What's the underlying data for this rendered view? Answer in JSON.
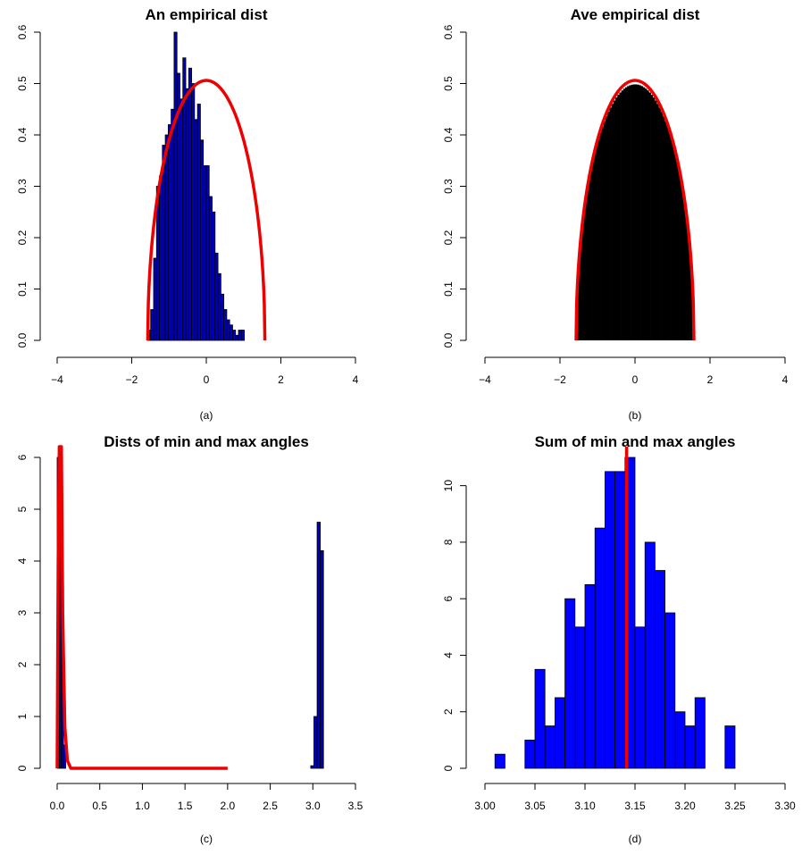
{
  "chart_data": [
    {
      "type": "bar",
      "title": "An empirical dist",
      "caption": "(a)",
      "xlabel": "",
      "ylabel": "",
      "xlim": [
        -4,
        4
      ],
      "ylim": [
        0,
        0.6
      ],
      "x_ticks": [
        -4,
        -2,
        0,
        2,
        4
      ],
      "y_ticks": [
        0.0,
        0.1,
        0.2,
        0.3,
        0.4,
        0.5,
        0.6
      ],
      "bar_color": "#0000b8",
      "bins": {
        "start": -1.571,
        "width": 0.0785,
        "values": [
          0.02,
          0.06,
          0.16,
          0.3,
          0.32,
          0.38,
          0.4,
          0.42,
          0.45,
          0.6,
          0.52,
          0.47,
          0.55,
          0.49,
          0.53,
          0.5,
          0.43,
          0.46,
          0.39,
          0.34,
          0.34,
          0.28,
          0.25,
          0.17,
          0.13,
          0.09,
          0.06,
          0.04,
          0.03,
          0.02,
          0.01,
          0.02,
          0.02
        ]
      },
      "density_curve": {
        "color": "#ee0000",
        "xmin": -1.571,
        "xmax": 1.571,
        "peak": 0.506,
        "shape": "semicircle"
      }
    },
    {
      "type": "bar",
      "title": "Ave empirical dist",
      "caption": "(b)",
      "xlabel": "",
      "ylabel": "",
      "xlim": [
        -4,
        4
      ],
      "ylim": [
        0,
        0.6
      ],
      "x_ticks": [
        -4,
        -2,
        0,
        2,
        4
      ],
      "y_ticks": [
        0.0,
        0.1,
        0.2,
        0.3,
        0.4,
        0.5,
        0.6
      ],
      "bar_color": "#000000",
      "note": "many fine bins closely following the semicircle density, peak about 0.50",
      "density_curve": {
        "color": "#ee0000",
        "xmin": -1.571,
        "xmax": 1.571,
        "peak": 0.506,
        "shape": "semicircle"
      }
    },
    {
      "type": "bar",
      "title": "Dists of min and max angles",
      "caption": "(c)",
      "xlabel": "",
      "ylabel": "",
      "xlim": [
        0,
        3.5
      ],
      "ylim": [
        0,
        6
      ],
      "x_ticks": [
        0.0,
        0.5,
        1.0,
        1.5,
        2.0,
        2.5,
        3.0,
        3.5
      ],
      "y_ticks": [
        0,
        1,
        2,
        3,
        4,
        5,
        6
      ],
      "bar_color": "#0000b8",
      "bins_min": {
        "start": 0.0,
        "width": 0.025,
        "values": [
          6.0,
          6.0,
          3.55,
          0.45
        ]
      },
      "bins_max": {
        "start": 2.975,
        "width": 0.0375,
        "values": [
          0.05,
          1.0,
          4.75,
          4.2
        ]
      },
      "density_curve": {
        "color": "#ee0000",
        "xmin": 0.0,
        "xmax": 2.0,
        "peak_x": 0.035,
        "note": "sharp spike near 0 that exceeds the upper limit, then flat at 0"
      }
    },
    {
      "type": "bar",
      "title": "Sum of min and max angles",
      "caption": "(d)",
      "xlabel": "",
      "ylabel": "",
      "xlim": [
        3.0,
        3.3
      ],
      "ylim": [
        0,
        11
      ],
      "x_ticks": [
        3.0,
        3.05,
        3.1,
        3.15,
        3.2,
        3.25,
        3.3
      ],
      "y_ticks": [
        0,
        2,
        4,
        6,
        8,
        10
      ],
      "bar_color": "#0000ff",
      "bins": {
        "start": 3.01,
        "width": 0.01,
        "values": [
          0.5,
          0,
          0,
          1.0,
          3.5,
          1.5,
          2.5,
          6.0,
          5.0,
          6.5,
          8.5,
          10.5,
          10.5,
          11.0,
          5.0,
          8.0,
          7.0,
          5.5,
          2.0,
          1.5,
          2.5,
          0,
          0,
          1.5
        ]
      },
      "vline": {
        "x": 3.1416,
        "color": "#ee0000"
      }
    }
  ]
}
